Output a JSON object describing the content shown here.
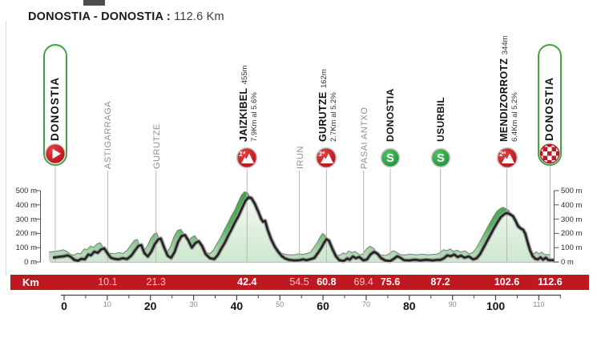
{
  "title": {
    "route": "DONOSTIA - DONOSTIA :",
    "distance": "112.6 Km"
  },
  "colors": {
    "accent_red": "#c01820",
    "accent_green": "#3fa344",
    "ribbon_green": "#57b25e",
    "area_fill_light": "#cde7cd",
    "profile_line": "#262626",
    "grid_gray": "#b7b7b7",
    "town_label_gray": "#8f8f8f"
  },
  "chart_data": {
    "type": "area",
    "title": "Stage elevation profile Donostia - Donostia, 112.6 Km",
    "xlabel": "Km",
    "ylabel": "m",
    "x_range": [
      0,
      115
    ],
    "y_range": [
      0,
      500
    ],
    "grid": "vertical lines at waypoints",
    "y_tick_labels": [
      "0 m",
      "100 m",
      "200 m",
      "300 m",
      "400 m",
      "500 m"
    ],
    "y_tick_values": [
      0,
      100,
      200,
      300,
      400,
      500
    ],
    "x_major_ticks": [
      0,
      20,
      40,
      60,
      80,
      100
    ],
    "x_minor_ticks": [
      10,
      30,
      50,
      70,
      90,
      110
    ],
    "waypoints": [
      {
        "km": 0,
        "label": "DONOSTIA",
        "type": "start",
        "icon": "start-play-icon"
      },
      {
        "km": 10.1,
        "label": "ASTIGARRAGA",
        "type": "town"
      },
      {
        "km": 21.3,
        "label": "GURUTZE",
        "type": "town"
      },
      {
        "km": 42.4,
        "label": "JAIZKIBEL",
        "type": "climb",
        "altitude": "455m",
        "detail": "7.9Km al 5.6%",
        "category": "1ª",
        "icon": "climb-category-icon"
      },
      {
        "km": 54.5,
        "label": "IRUN",
        "type": "town"
      },
      {
        "km": 60.8,
        "label": "GURUTZE",
        "type": "climb",
        "altitude": "162m",
        "detail": "2.7Km al 5.2%",
        "category": "3ª",
        "icon": "climb-category-icon"
      },
      {
        "km": 69.4,
        "label": "PASAI ANTXO",
        "type": "town"
      },
      {
        "km": 75.6,
        "label": "DONOSTIA",
        "type": "sprint",
        "icon": "sprint-s-icon"
      },
      {
        "km": 87.2,
        "label": "USURBIL",
        "type": "sprint",
        "icon": "sprint-s-icon"
      },
      {
        "km": 102.6,
        "label": "MENDIZORROTZ",
        "type": "climb",
        "altitude": "344m",
        "detail": "6.4Km al 5.2%",
        "category": "2ª",
        "icon": "climb-category-icon"
      },
      {
        "km": 112.6,
        "label": "DONOSTIA",
        "type": "finish",
        "icon": "finish-checkered-icon"
      }
    ],
    "km_bar": {
      "label": "Km",
      "values": [
        {
          "km": 10.1,
          "text": "10.1",
          "muted": true
        },
        {
          "km": 21.3,
          "text": "21.3",
          "muted": true
        },
        {
          "km": 42.4,
          "text": "42.4",
          "muted": false
        },
        {
          "km": 54.5,
          "text": "54.5",
          "muted": true
        },
        {
          "km": 60.8,
          "text": "60.8",
          "muted": false
        },
        {
          "km": 69.4,
          "text": "69.4",
          "muted": true
        },
        {
          "km": 75.6,
          "text": "75.6",
          "muted": false
        },
        {
          "km": 87.2,
          "text": "87.2",
          "muted": false
        },
        {
          "km": 102.6,
          "text": "102.6",
          "muted": false
        },
        {
          "km": 112.6,
          "text": "112.6",
          "muted": false
        }
      ]
    },
    "profile_km_elevation": [
      [
        -2.6,
        30
      ],
      [
        -1.5,
        34
      ],
      [
        0,
        40
      ],
      [
        0.8,
        46
      ],
      [
        1.6,
        34
      ],
      [
        2.4,
        14
      ],
      [
        3.2,
        8
      ],
      [
        4.0,
        22
      ],
      [
        4.8,
        18
      ],
      [
        5.6,
        52
      ],
      [
        6.2,
        46
      ],
      [
        7.0,
        72
      ],
      [
        7.8,
        64
      ],
      [
        8.6,
        88
      ],
      [
        9.3,
        95
      ],
      [
        10.1,
        58
      ],
      [
        10.8,
        30
      ],
      [
        11.6,
        22
      ],
      [
        12.6,
        18
      ],
      [
        13.6,
        26
      ],
      [
        14.6,
        20
      ],
      [
        15.6,
        45
      ],
      [
        16.4,
        80
      ],
      [
        17.2,
        112
      ],
      [
        17.9,
        118
      ],
      [
        18.6,
        62
      ],
      [
        19.4,
        38
      ],
      [
        20.2,
        72
      ],
      [
        21.0,
        125
      ],
      [
        21.8,
        158
      ],
      [
        22.4,
        164
      ],
      [
        23.2,
        100
      ],
      [
        24.0,
        44
      ],
      [
        24.8,
        28
      ],
      [
        25.6,
        70
      ],
      [
        26.4,
        140
      ],
      [
        27.2,
        182
      ],
      [
        28.0,
        188
      ],
      [
        28.8,
        150
      ],
      [
        29.6,
        100
      ],
      [
        30.4,
        132
      ],
      [
        31.2,
        145
      ],
      [
        32.0,
        110
      ],
      [
        32.8,
        55
      ],
      [
        33.8,
        26
      ],
      [
        34.8,
        20
      ],
      [
        35.6,
        48
      ],
      [
        36.4,
        92
      ],
      [
        37.2,
        132
      ],
      [
        38.0,
        182
      ],
      [
        38.8,
        228
      ],
      [
        39.6,
        278
      ],
      [
        40.4,
        322
      ],
      [
        41.2,
        376
      ],
      [
        42.0,
        428
      ],
      [
        42.7,
        452
      ],
      [
        43.4,
        448
      ],
      [
        44.2,
        408
      ],
      [
        45.0,
        352
      ],
      [
        45.6,
        305
      ],
      [
        46.1,
        282
      ],
      [
        46.6,
        288
      ],
      [
        47.2,
        222
      ],
      [
        48.0,
        158
      ],
      [
        48.8,
        108
      ],
      [
        49.6,
        72
      ],
      [
        50.4,
        42
      ],
      [
        51.2,
        24
      ],
      [
        52.2,
        14
      ],
      [
        53.4,
        10
      ],
      [
        54.5,
        12
      ],
      [
        55.4,
        18
      ],
      [
        56.2,
        12
      ],
      [
        57.2,
        20
      ],
      [
        58.0,
        28
      ],
      [
        58.8,
        62
      ],
      [
        59.6,
        98
      ],
      [
        60.2,
        132
      ],
      [
        60.8,
        160
      ],
      [
        61.4,
        148
      ],
      [
        62.2,
        90
      ],
      [
        63.0,
        38
      ],
      [
        63.8,
        12
      ],
      [
        64.8,
        6
      ],
      [
        65.6,
        24
      ],
      [
        66.2,
        16
      ],
      [
        66.9,
        38
      ],
      [
        67.6,
        26
      ],
      [
        68.4,
        34
      ],
      [
        69.4,
        10
      ],
      [
        70.2,
        18
      ],
      [
        71.0,
        52
      ],
      [
        71.8,
        70
      ],
      [
        72.6,
        58
      ],
      [
        73.4,
        28
      ],
      [
        74.4,
        10
      ],
      [
        75.6,
        6
      ],
      [
        76.4,
        22
      ],
      [
        77.2,
        40
      ],
      [
        78.0,
        28
      ],
      [
        78.8,
        12
      ],
      [
        80.0,
        10
      ],
      [
        81.2,
        16
      ],
      [
        82.6,
        10
      ],
      [
        84.0,
        15
      ],
      [
        85.4,
        10
      ],
      [
        86.4,
        14
      ],
      [
        87.2,
        14
      ],
      [
        88.0,
        26
      ],
      [
        88.8,
        46
      ],
      [
        89.6,
        40
      ],
      [
        90.4,
        52
      ],
      [
        91.2,
        34
      ],
      [
        92.0,
        44
      ],
      [
        92.8,
        30
      ],
      [
        93.8,
        38
      ],
      [
        94.8,
        18
      ],
      [
        95.6,
        26
      ],
      [
        96.4,
        55
      ],
      [
        97.2,
        100
      ],
      [
        98.0,
        145
      ],
      [
        98.8,
        190
      ],
      [
        99.6,
        235
      ],
      [
        100.4,
        278
      ],
      [
        101.2,
        315
      ],
      [
        102.0,
        335
      ],
      [
        102.6,
        344
      ],
      [
        103.3,
        335
      ],
      [
        104.0,
        322
      ],
      [
        104.6,
        290
      ],
      [
        105.2,
        250
      ],
      [
        105.8,
        235
      ],
      [
        106.4,
        225
      ],
      [
        106.9,
        195
      ],
      [
        107.4,
        140
      ],
      [
        108.0,
        80
      ],
      [
        108.6,
        40
      ],
      [
        109.2,
        22
      ],
      [
        109.8,
        18
      ],
      [
        110.4,
        32
      ],
      [
        111.0,
        16
      ],
      [
        111.6,
        30
      ],
      [
        112.2,
        14
      ],
      [
        112.6,
        12
      ],
      [
        113.6,
        12
      ]
    ]
  }
}
